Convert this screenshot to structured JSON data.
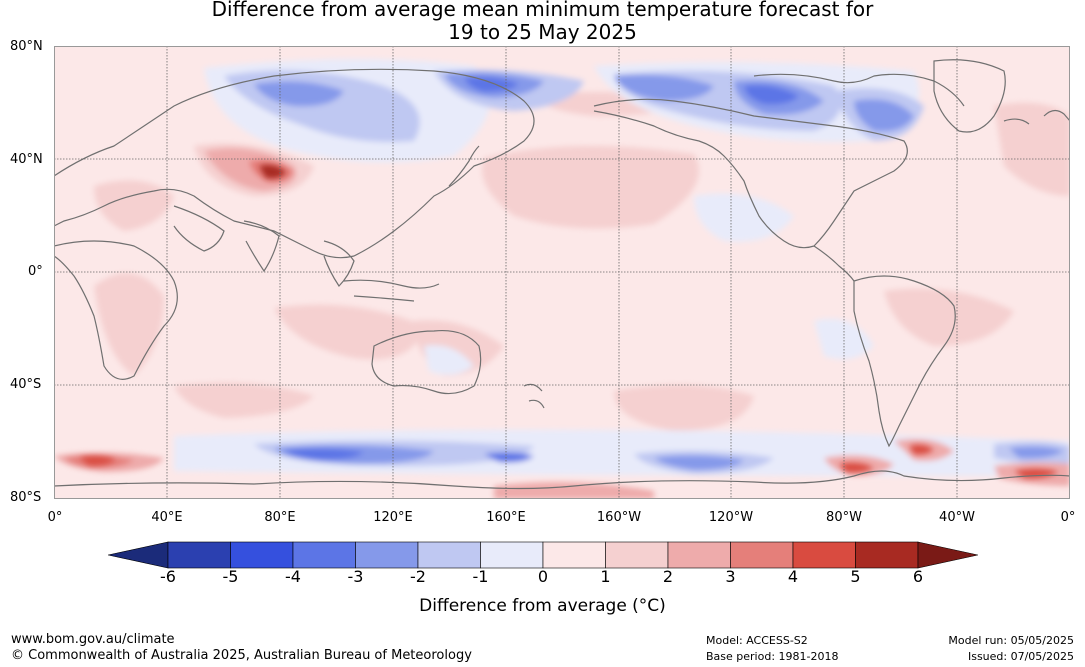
{
  "title": {
    "line1": "Difference from average mean minimum temperature forecast for",
    "line2": "19 to 25 May 2025"
  },
  "axes": {
    "lat_labels": [
      "80°N",
      "40°N",
      "0°",
      "40°S",
      "80°S"
    ],
    "lon_labels": [
      "0°",
      "40°E",
      "80°E",
      "120°E",
      "160°E",
      "160°W",
      "120°W",
      "80°W",
      "40°W",
      "0°"
    ]
  },
  "colorbar": {
    "title": "Difference from average (°C)",
    "ticks": [
      "-6",
      "-5",
      "-4",
      "-3",
      "-2",
      "-1",
      "0",
      "1",
      "2",
      "3",
      "4",
      "5",
      "6"
    ],
    "colors": [
      "#1b2b7a",
      "#2b40b0",
      "#3550de",
      "#5c75e6",
      "#8599ea",
      "#bfc8f2",
      "#e8ebfa",
      "#fce8e8",
      "#f5d0d0",
      "#eeabab",
      "#e57f7a",
      "#d94b40",
      "#a82a22",
      "#7a1a16"
    ]
  },
  "footer": {
    "website": "www.bom.gov.au/climate",
    "copyright": "© Commonwealth of Australia 2025, Australian Bureau of Meteorology",
    "model": "Model: ACCESS-S2",
    "base_period": "Base period: 1981-2018",
    "model_run": "Model run: 05/05/2025",
    "issued": "Issued: 07/05/2025"
  }
}
